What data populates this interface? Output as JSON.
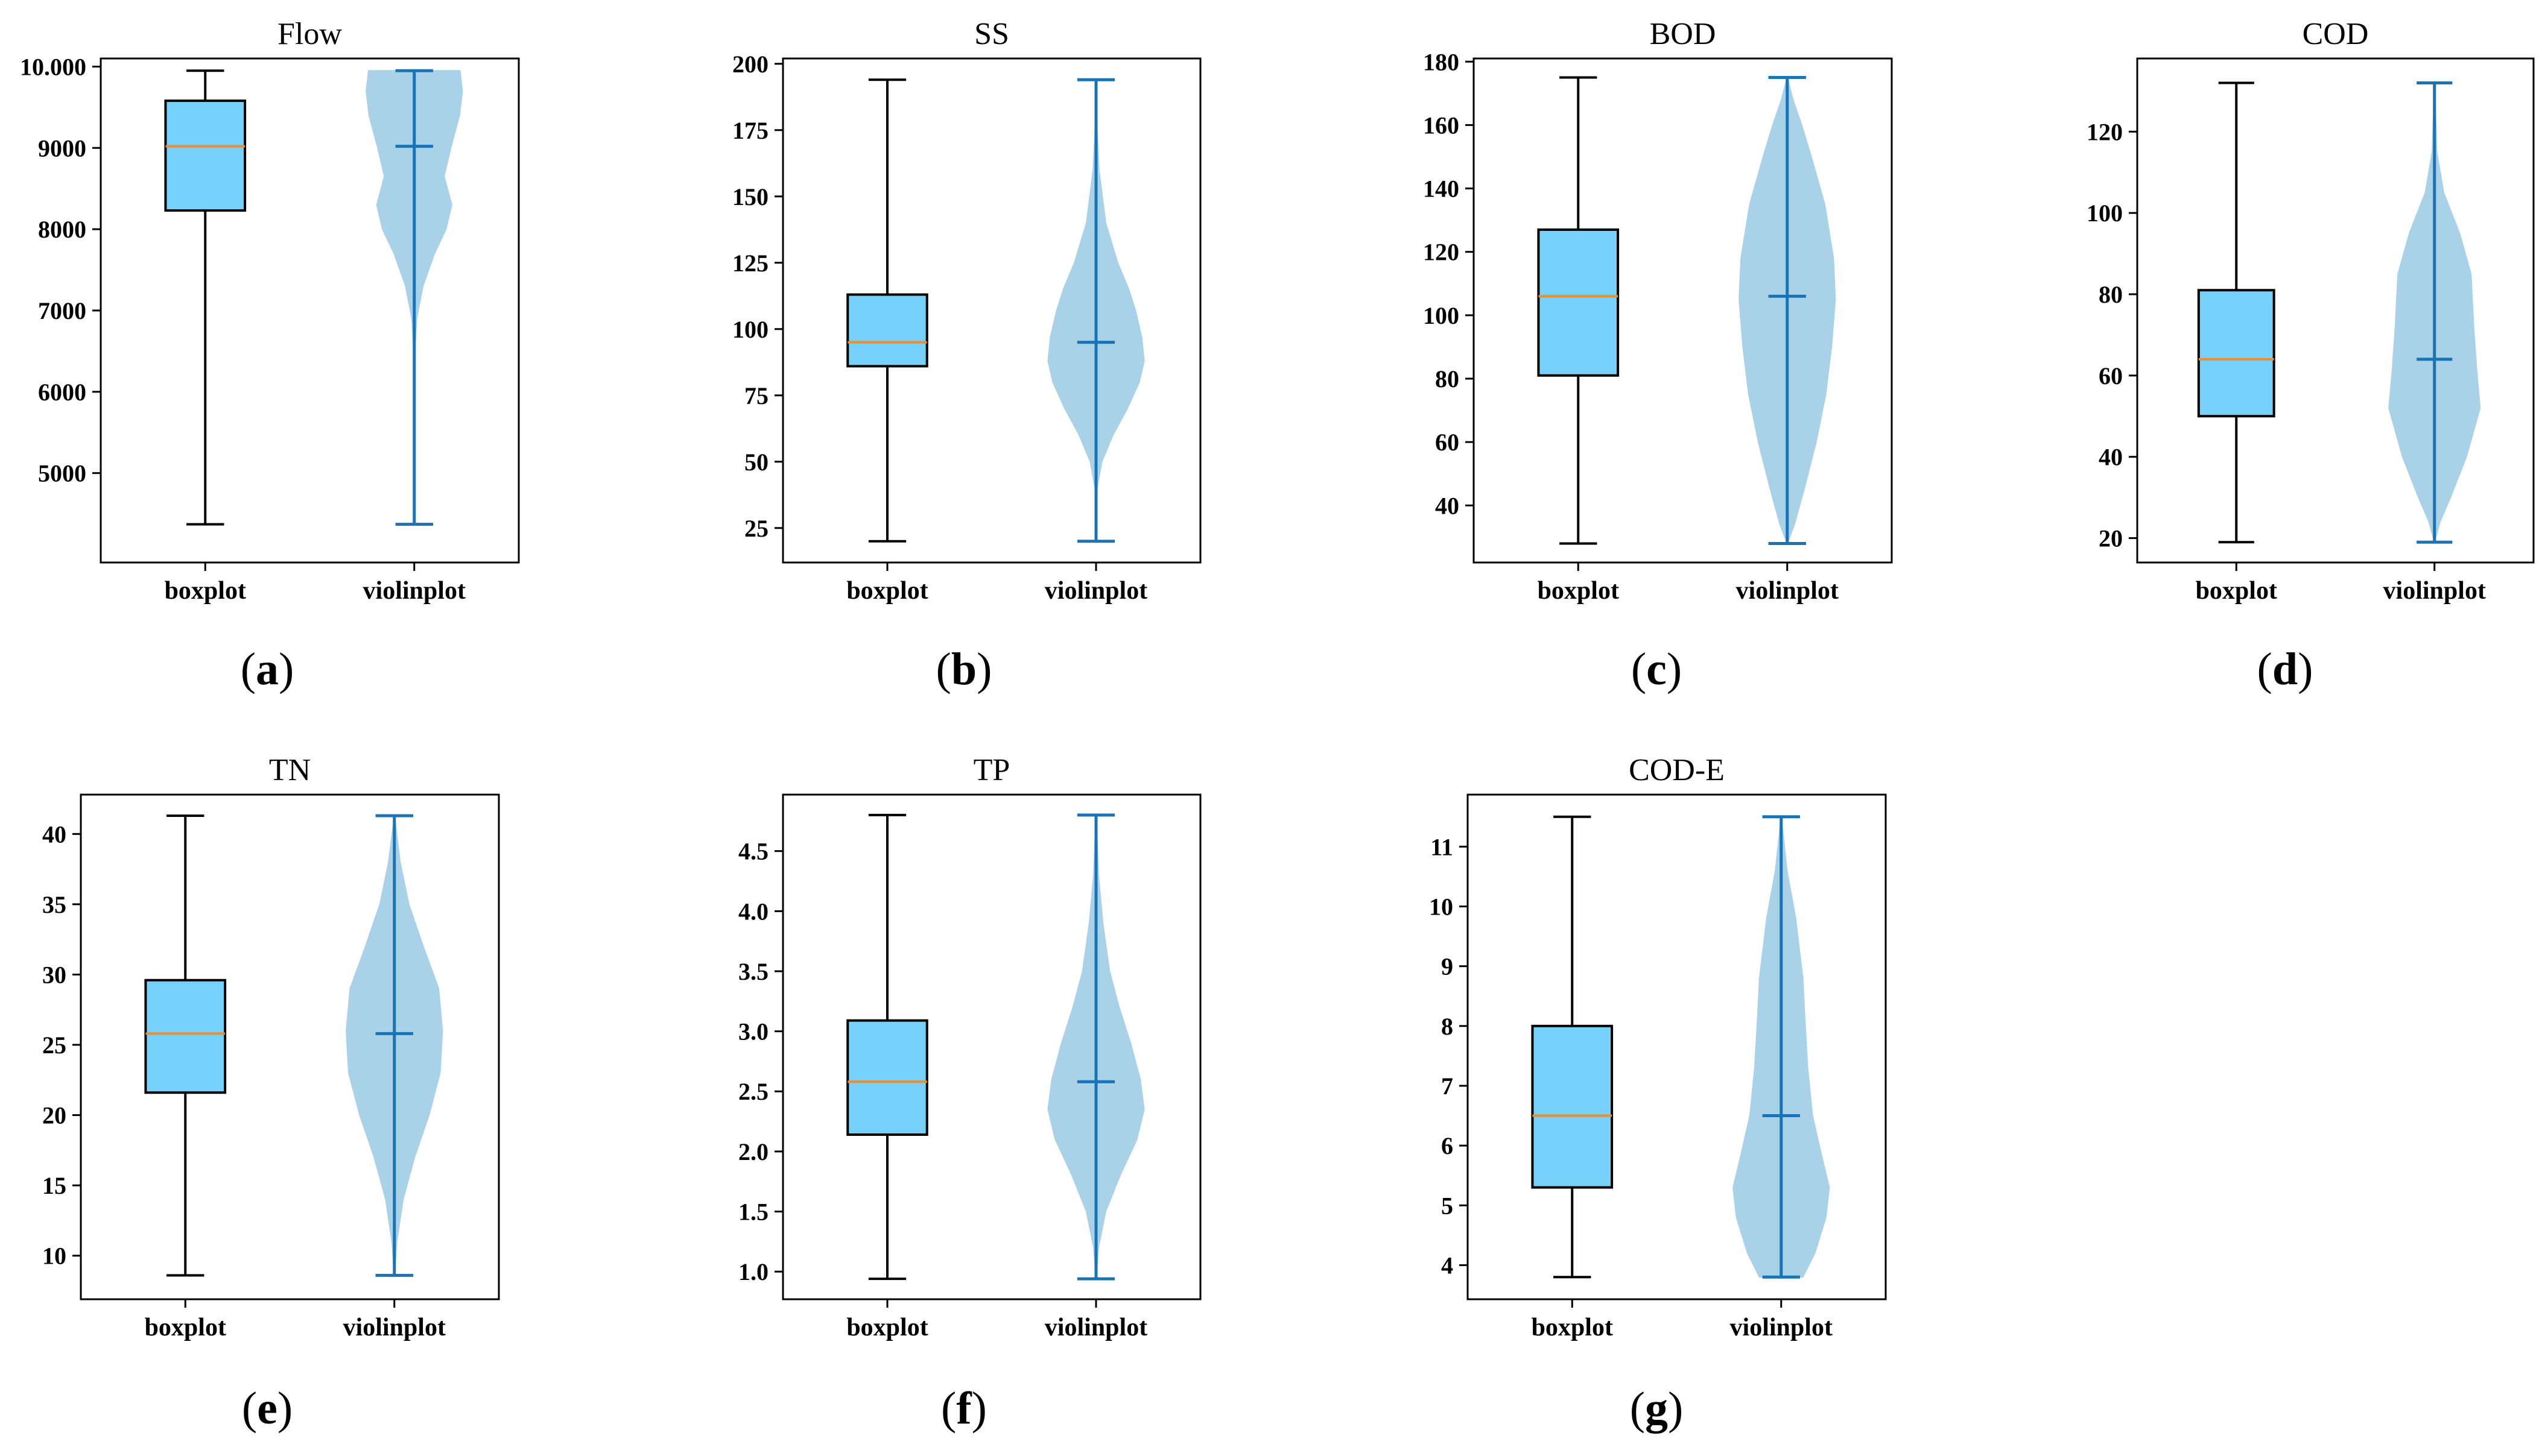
{
  "figure": {
    "colors": {
      "box_fill": "#75D0FA",
      "box_edge": "#000000",
      "median": "#F28C28",
      "violin_fill": "#A9D2E8",
      "violin_line": "#1A73B5",
      "axis": "#000000"
    }
  },
  "chart_data": [
    {
      "type": "box_violin",
      "panel_label": "(a)",
      "title": "Flow",
      "categories": [
        "boxplot",
        "violinplot"
      ],
      "ylim": [
        3900,
        10100
      ],
      "yticks": [
        5000,
        6000,
        7000,
        8000,
        9000,
        10000
      ],
      "ytick_labels": [
        "5000",
        "6000",
        "7000",
        "8000",
        "9000",
        "10.000"
      ],
      "box": {
        "min": 4370,
        "q1": 8230,
        "median": 9020,
        "q3": 9580,
        "max": 9950
      },
      "violin": {
        "min": 4370,
        "max": 9950,
        "median": 9020,
        "profile": [
          [
            4370,
            0.0
          ],
          [
            6500,
            0.01
          ],
          [
            6900,
            0.05
          ],
          [
            7300,
            0.18
          ],
          [
            7700,
            0.42
          ],
          [
            8000,
            0.66
          ],
          [
            8300,
            0.78
          ],
          [
            8650,
            0.62
          ],
          [
            9000,
            0.76
          ],
          [
            9400,
            0.94
          ],
          [
            9700,
            1.0
          ],
          [
            9950,
            0.95
          ]
        ]
      }
    },
    {
      "type": "box_violin",
      "panel_label": "(b)",
      "title": "SS",
      "categories": [
        "boxplot",
        "violinplot"
      ],
      "ylim": [
        12,
        202
      ],
      "yticks": [
        25,
        50,
        75,
        100,
        125,
        150,
        175,
        200
      ],
      "ytick_labels": [
        "25",
        "50",
        "75",
        "100",
        "125",
        "150",
        "175",
        "200"
      ],
      "box": {
        "min": 20,
        "q1": 86,
        "median": 95,
        "q3": 113,
        "max": 194
      },
      "violin": {
        "min": 20,
        "max": 194,
        "median": 95,
        "profile": [
          [
            20,
            0.0
          ],
          [
            40,
            0.02
          ],
          [
            50,
            0.12
          ],
          [
            60,
            0.35
          ],
          [
            70,
            0.65
          ],
          [
            80,
            0.9
          ],
          [
            88,
            1.0
          ],
          [
            97,
            0.95
          ],
          [
            107,
            0.82
          ],
          [
            115,
            0.68
          ],
          [
            125,
            0.45
          ],
          [
            140,
            0.2
          ],
          [
            160,
            0.06
          ],
          [
            175,
            0.02
          ],
          [
            194,
            0.0
          ]
        ]
      }
    },
    {
      "type": "box_violin",
      "panel_label": "(c)",
      "title": "BOD",
      "categories": [
        "boxplot",
        "violinplot"
      ],
      "ylim": [
        22,
        181
      ],
      "yticks": [
        40,
        60,
        80,
        100,
        120,
        140,
        160,
        180
      ],
      "ytick_labels": [
        "40",
        "60",
        "80",
        "100",
        "120",
        "140",
        "160",
        "180"
      ],
      "box": {
        "min": 28,
        "q1": 81,
        "median": 106,
        "q3": 127,
        "max": 175
      },
      "violin": {
        "min": 28,
        "max": 175,
        "median": 106,
        "profile": [
          [
            28,
            0.0
          ],
          [
            34,
            0.15
          ],
          [
            45,
            0.35
          ],
          [
            60,
            0.6
          ],
          [
            75,
            0.8
          ],
          [
            90,
            0.92
          ],
          [
            105,
            1.0
          ],
          [
            118,
            0.96
          ],
          [
            135,
            0.78
          ],
          [
            150,
            0.5
          ],
          [
            160,
            0.3
          ],
          [
            168,
            0.12
          ],
          [
            175,
            0.0
          ]
        ]
      }
    },
    {
      "type": "box_violin",
      "panel_label": "(d)",
      "title": "COD",
      "categories": [
        "boxplot",
        "violinplot"
      ],
      "ylim": [
        14,
        138
      ],
      "yticks": [
        20,
        40,
        60,
        80,
        100,
        120
      ],
      "ytick_labels": [
        "20",
        "40",
        "60",
        "80",
        "100",
        "120"
      ],
      "box": {
        "min": 19,
        "q1": 50,
        "median": 64,
        "q3": 81,
        "max": 132
      },
      "violin": {
        "min": 19,
        "max": 132,
        "median": 64,
        "profile": [
          [
            19,
            0.0
          ],
          [
            24,
            0.12
          ],
          [
            30,
            0.35
          ],
          [
            40,
            0.7
          ],
          [
            52,
            1.0
          ],
          [
            62,
            0.92
          ],
          [
            72,
            0.86
          ],
          [
            85,
            0.8
          ],
          [
            95,
            0.55
          ],
          [
            105,
            0.2
          ],
          [
            115,
            0.05
          ],
          [
            132,
            0.0
          ]
        ]
      }
    },
    {
      "type": "box_violin",
      "panel_label": "(e)",
      "title": "TN",
      "categories": [
        "boxplot",
        "violinplot"
      ],
      "ylim": [
        6.9,
        42.8
      ],
      "yticks": [
        10,
        15,
        20,
        25,
        30,
        35,
        40
      ],
      "ytick_labels": [
        "10",
        "15",
        "20",
        "25",
        "30",
        "35",
        "40"
      ],
      "box": {
        "min": 8.6,
        "q1": 21.6,
        "median": 25.8,
        "q3": 29.6,
        "max": 41.3
      },
      "violin": {
        "min": 8.6,
        "max": 41.3,
        "median": 25.8,
        "profile": [
          [
            8.6,
            0.0
          ],
          [
            11,
            0.05
          ],
          [
            14,
            0.18
          ],
          [
            17,
            0.42
          ],
          [
            20,
            0.72
          ],
          [
            23,
            0.95
          ],
          [
            26,
            1.0
          ],
          [
            29,
            0.92
          ],
          [
            32,
            0.6
          ],
          [
            35,
            0.3
          ],
          [
            38,
            0.12
          ],
          [
            41.3,
            0.0
          ]
        ]
      }
    },
    {
      "type": "box_violin",
      "panel_label": "(f)",
      "title": "TP",
      "categories": [
        "boxplot",
        "violinplot"
      ],
      "ylim": [
        0.77,
        4.97
      ],
      "yticks": [
        1.0,
        1.5,
        2.0,
        2.5,
        3.0,
        3.5,
        4.0,
        4.5
      ],
      "ytick_labels": [
        "1.0",
        "1.5",
        "2.0",
        "2.5",
        "3.0",
        "3.5",
        "4.0",
        "4.5"
      ],
      "box": {
        "min": 0.94,
        "q1": 2.14,
        "median": 2.58,
        "q3": 3.09,
        "max": 4.8
      },
      "violin": {
        "min": 0.94,
        "max": 4.8,
        "median": 2.58,
        "profile": [
          [
            0.94,
            0.0
          ],
          [
            1.2,
            0.05
          ],
          [
            1.5,
            0.2
          ],
          [
            1.8,
            0.5
          ],
          [
            2.1,
            0.85
          ],
          [
            2.35,
            1.0
          ],
          [
            2.6,
            0.92
          ],
          [
            2.9,
            0.72
          ],
          [
            3.2,
            0.48
          ],
          [
            3.5,
            0.28
          ],
          [
            3.9,
            0.14
          ],
          [
            4.3,
            0.05
          ],
          [
            4.8,
            0.0
          ]
        ]
      }
    },
    {
      "type": "box_violin",
      "panel_label": "(g)",
      "title": "COD-E",
      "categories": [
        "boxplot",
        "violinplot"
      ],
      "ylim": [
        3.43,
        11.87
      ],
      "yticks": [
        4,
        5,
        6,
        7,
        8,
        9,
        10,
        11
      ],
      "ytick_labels": [
        "4",
        "5",
        "6",
        "7",
        "8",
        "9",
        "10",
        "11"
      ],
      "box": {
        "min": 3.8,
        "q1": 5.3,
        "median": 6.5,
        "q3": 8.0,
        "max": 11.5
      },
      "violin": {
        "min": 3.8,
        "max": 11.5,
        "median": 6.5,
        "profile": [
          [
            3.8,
            0.45
          ],
          [
            4.2,
            0.7
          ],
          [
            4.8,
            0.93
          ],
          [
            5.3,
            1.0
          ],
          [
            5.8,
            0.85
          ],
          [
            6.5,
            0.65
          ],
          [
            7.3,
            0.55
          ],
          [
            8.0,
            0.5
          ],
          [
            8.8,
            0.45
          ],
          [
            9.8,
            0.3
          ],
          [
            10.6,
            0.12
          ],
          [
            11.5,
            0.0
          ]
        ]
      }
    }
  ]
}
